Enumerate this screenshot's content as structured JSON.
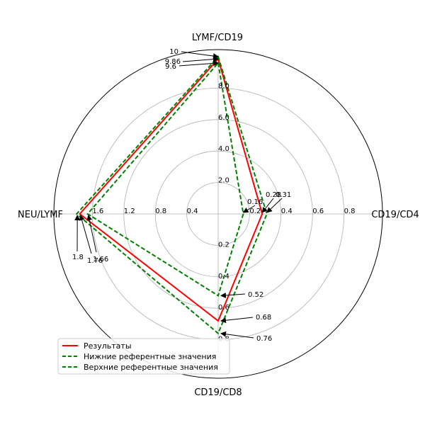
{
  "chart_data": {
    "type": "radar",
    "axes": [
      "LYMF/CD19",
      "CD19/CD4",
      "CD19/CD8",
      "NEU/LYMF"
    ],
    "series": [
      {
        "name": "Результаты",
        "values": [
          9.86,
          0.28,
          0.68,
          1.76
        ],
        "color": "#ff0000",
        "dashed": false
      },
      {
        "name": "Нижние референтные значения",
        "values": [
          9.6,
          0.16,
          0.52,
          1.66
        ],
        "color": "#008000",
        "dashed": true
      },
      {
        "name": "Верхние референтные значения",
        "values": [
          10,
          0.31,
          0.76,
          1.8
        ],
        "color": "#008000",
        "dashed": true
      }
    ],
    "axis_ticks": [
      {
        "axis": "LYMF/CD19",
        "ticks": [
          "2.0",
          "4.0",
          "6.0",
          "8.0"
        ],
        "values": [
          2,
          4,
          6,
          8
        ],
        "max": 10
      },
      {
        "axis": "CD19/CD4",
        "ticks": [
          "0.2",
          "0.4",
          "0.6",
          "0.8"
        ],
        "values": [
          0.2,
          0.4,
          0.6,
          0.8
        ],
        "max": 1
      },
      {
        "axis": "CD19/CD8",
        "ticks": [
          "0.2",
          "0.4",
          "0.6",
          "0.8"
        ],
        "values": [
          0.2,
          0.4,
          0.6,
          0.8
        ],
        "max": 1
      },
      {
        "axis": "NEU/LYMF",
        "ticks": [
          "0.4",
          "0.8",
          "1.2",
          "1.6"
        ],
        "values": [
          0.4,
          0.8,
          1.2,
          1.6
        ],
        "max": 2
      }
    ],
    "annotations": [
      {
        "axis": "LYMF/CD19",
        "labels": [
          "10",
          "9.86",
          "9.6"
        ]
      },
      {
        "axis": "CD19/CD4",
        "labels": [
          "0.16",
          "0.28",
          "0.31"
        ]
      },
      {
        "axis": "CD19/CD8",
        "labels": [
          "0.52",
          "0.68",
          "0.76"
        ]
      },
      {
        "axis": "NEU/LYMF",
        "labels": [
          "1.8",
          "1.76",
          "1.66"
        ]
      }
    ],
    "grid": true,
    "legend_position": "bottom-left"
  }
}
